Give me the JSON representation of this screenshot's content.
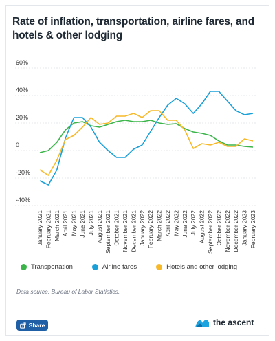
{
  "title": "Rate of inflation, transportation, airline fares, and hotels & other lodging",
  "source_note": "Data source: Bureau of Labor Statistics.",
  "share_label": "Share",
  "brand_name": "the ascent",
  "colors": {
    "transportation": "#3bb54a",
    "airline": "#1aa0d8",
    "hotels": "#f7b928",
    "grid": "#e5e7eb",
    "share_button": "#1f5fa6",
    "brand_blue": "#1ba4e0"
  },
  "icons": {
    "share": "share-icon",
    "brand": "wave-logo-icon"
  },
  "chart_data": {
    "type": "line",
    "title": "Rate of inflation, transportation, airline fares, and hotels & other lodging",
    "xlabel": "",
    "ylabel": "",
    "ylim": [
      -40,
      60
    ],
    "yticks": [
      "60%",
      "40%",
      "20%",
      "0",
      "-20%",
      "-40%"
    ],
    "ytick_values": [
      60,
      40,
      20,
      0,
      -20,
      -40
    ],
    "grid": true,
    "legend_position": "bottom",
    "categories": [
      "January 2021",
      "February 2021",
      "March 2021",
      "April 2021",
      "May 2021",
      "June 2021",
      "July 2021",
      "August 2021",
      "September 2021",
      "October 2021",
      "November 2021",
      "December 2021",
      "January 2022",
      "February 2022",
      "March 2022",
      "April 2022",
      "May 2022",
      "June 2022",
      "July 2022",
      "August 2022",
      "September 2022",
      "October 2022",
      "November 2022",
      "December 2022",
      "January 2023",
      "February 2023"
    ],
    "series": [
      {
        "name": "Transportation",
        "color": "#3bb54a",
        "values": [
          -1.5,
          0,
          6,
          15,
          20,
          21,
          18,
          17,
          19,
          21,
          22,
          21,
          21,
          22,
          20,
          19,
          19.5,
          16,
          13.5,
          12.5,
          11,
          7,
          4,
          4,
          3,
          2.5
        ]
      },
      {
        "name": "Airline fares",
        "color": "#1aa0d8",
        "values": [
          -22,
          -25,
          -14,
          9,
          24,
          24,
          17,
          6,
          0,
          -5,
          -5,
          1,
          4,
          14,
          24,
          33,
          38,
          34,
          27,
          34,
          43,
          43,
          36,
          29,
          26,
          27
        ]
      },
      {
        "name": "Hotels and other lodging",
        "color": "#f7b928",
        "values": [
          -14,
          -18,
          -7,
          8,
          11,
          17,
          24,
          19,
          20,
          25,
          25,
          27,
          24,
          29,
          29,
          22,
          22,
          15,
          1.5,
          5,
          4,
          6,
          3,
          3,
          8.5,
          7
        ]
      }
    ]
  }
}
